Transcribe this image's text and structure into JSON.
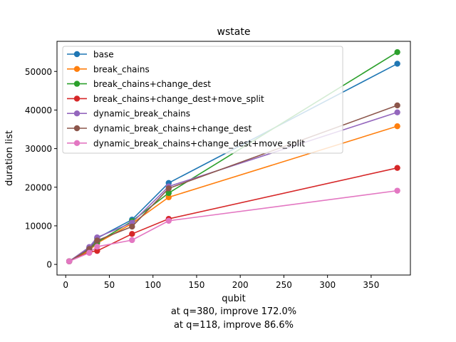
{
  "chart_data": {
    "type": "line",
    "title": "wstate",
    "xlabel": "qubit",
    "ylabel": "duration list",
    "xlim": [
      -10,
      395
    ],
    "ylim": [
      -2750,
      57800
    ],
    "xticks": [
      0,
      50,
      100,
      150,
      200,
      250,
      300,
      350
    ],
    "yticks": [
      0,
      10000,
      20000,
      30000,
      40000,
      50000
    ],
    "grid": false,
    "legend_position": "upper-left",
    "x": [
      4,
      27,
      36,
      76,
      118,
      380
    ],
    "series": [
      {
        "name": "base",
        "color": "#1f77b4",
        "values": [
          800,
          4300,
          6800,
          11600,
          21100,
          52000
        ]
      },
      {
        "name": "break_chains",
        "color": "#ff7f0e",
        "values": [
          800,
          3600,
          5500,
          10600,
          17400,
          35800
        ]
      },
      {
        "name": "break_chains+change_dest",
        "color": "#2ca02c",
        "values": [
          800,
          3900,
          5700,
          11200,
          18500,
          55000
        ]
      },
      {
        "name": "break_chains+change_dest+move_split",
        "color": "#d62728",
        "values": [
          800,
          3200,
          3500,
          7900,
          11800,
          25000
        ]
      },
      {
        "name": "dynamic_break_chains",
        "color": "#9467bd",
        "values": [
          800,
          4500,
          7000,
          10800,
          20200,
          39400
        ]
      },
      {
        "name": "dynamic_break_chains+change_dest",
        "color": "#8c564b",
        "values": [
          800,
          4000,
          6200,
          9800,
          19700,
          41200
        ]
      },
      {
        "name": "dynamic_break_chains+change_dest+move_split",
        "color": "#e377c2",
        "values": [
          800,
          3000,
          4600,
          6300,
          11300,
          19100
        ]
      }
    ],
    "annotations": [
      "at q=380, improve 172.0%",
      "at q=118, improve 86.6%"
    ]
  }
}
